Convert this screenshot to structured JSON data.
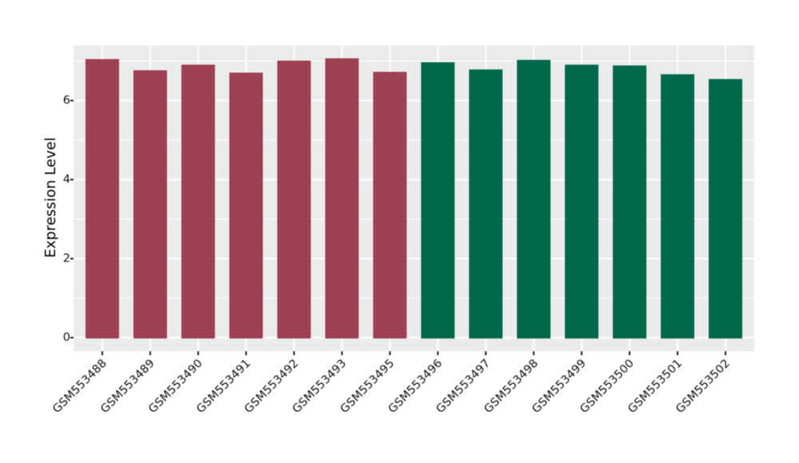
{
  "chart_data": {
    "type": "bar",
    "title": "",
    "xlabel": "",
    "ylabel": "Expression Level",
    "categories": [
      "GSM553488",
      "GSM553489",
      "GSM553490",
      "GSM553491",
      "GSM553492",
      "GSM553493",
      "GSM553495",
      "GSM553496",
      "GSM553497",
      "GSM553498",
      "GSM553499",
      "GSM553500",
      "GSM553501",
      "GSM553502"
    ],
    "values": [
      7.05,
      6.77,
      6.92,
      6.71,
      7.01,
      7.07,
      6.74,
      6.97,
      6.79,
      7.03,
      6.92,
      6.9,
      6.68,
      6.56
    ],
    "bar_colors": [
      "#9C4052",
      "#9C4052",
      "#9C4052",
      "#9C4052",
      "#9C4052",
      "#9C4052",
      "#9C4052",
      "#02684C",
      "#02684C",
      "#02684C",
      "#02684C",
      "#02684C",
      "#02684C",
      "#02684C"
    ],
    "ylim": [
      -0.344,
      7.4
    ],
    "yticks": [
      0,
      2,
      4,
      6
    ],
    "yticks_minor": [
      1,
      3,
      5,
      7
    ],
    "grid": true,
    "legend": "none",
    "panel_background": "#EBEBEB",
    "grid_color": "#FFFFFF",
    "tick_color": "#222222",
    "x_tick_label_rotation": 45,
    "bar_width_fraction": 0.7
  }
}
